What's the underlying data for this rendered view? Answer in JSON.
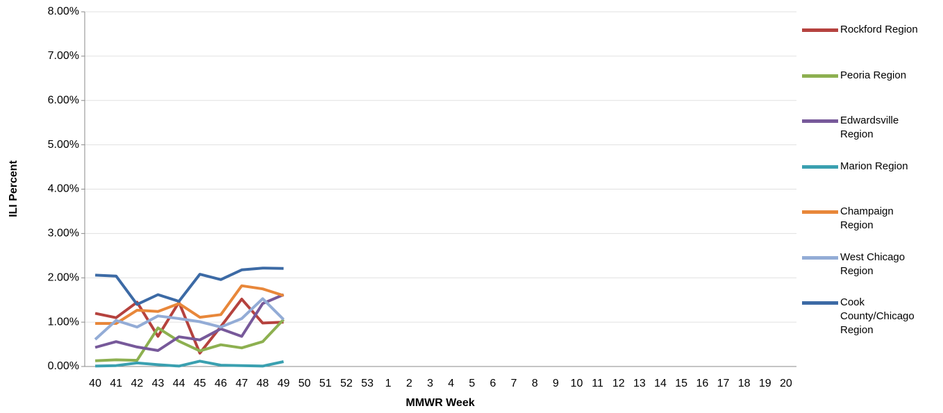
{
  "chart_data": {
    "type": "line",
    "x_label": "MMWR Week",
    "y_label": "ILI Percent",
    "categories": [
      40,
      41,
      42,
      43,
      44,
      45,
      46,
      47,
      48,
      49,
      50,
      51,
      52,
      53,
      1,
      2,
      3,
      4,
      5,
      6,
      7,
      8,
      9,
      10,
      11,
      12,
      13,
      14,
      15,
      16,
      17,
      18,
      19,
      20
    ],
    "ylim": [
      0,
      8
    ],
    "yticks": [
      {
        "value": 0,
        "label": "0.00%"
      },
      {
        "value": 1,
        "label": "1.00%"
      },
      {
        "value": 2,
        "label": "2.00%"
      },
      {
        "value": 3,
        "label": "3.00%"
      },
      {
        "value": 4,
        "label": "4.00%"
      },
      {
        "value": 5,
        "label": "5.00%"
      },
      {
        "value": 6,
        "label": "6.00%"
      },
      {
        "value": 7,
        "label": "7.00%"
      },
      {
        "value": 8,
        "label": "8.00%"
      }
    ],
    "grid": true,
    "legend": "right",
    "series": [
      {
        "name": "Rockford Region",
        "color": "#b5423e",
        "values": [
          1.2,
          1.1,
          1.45,
          0.68,
          1.45,
          0.3,
          0.9,
          1.52,
          0.98,
          1.0,
          null,
          null,
          null,
          null,
          null,
          null,
          null,
          null,
          null,
          null,
          null,
          null,
          null,
          null,
          null,
          null,
          null,
          null,
          null,
          null,
          null,
          null,
          null,
          null
        ]
      },
      {
        "name": "Peoria Region",
        "color": "#8db050",
        "values": [
          0.13,
          0.15,
          0.14,
          0.87,
          0.57,
          0.35,
          0.49,
          0.42,
          0.56,
          1.06,
          null,
          null,
          null,
          null,
          null,
          null,
          null,
          null,
          null,
          null,
          null,
          null,
          null,
          null,
          null,
          null,
          null,
          null,
          null,
          null,
          null,
          null,
          null,
          null
        ]
      },
      {
        "name": "Edwardsville Region",
        "color": "#77599a",
        "values": [
          0.43,
          0.56,
          0.44,
          0.36,
          0.67,
          0.6,
          0.85,
          0.68,
          1.42,
          1.62,
          null,
          null,
          null,
          null,
          null,
          null,
          null,
          null,
          null,
          null,
          null,
          null,
          null,
          null,
          null,
          null,
          null,
          null,
          null,
          null,
          null,
          null,
          null,
          null
        ]
      },
      {
        "name": "Marion Region",
        "color": "#3aa0b0",
        "values": [
          0.01,
          0.02,
          0.08,
          0.04,
          0.01,
          0.12,
          0.03,
          0.02,
          0.01,
          0.11,
          null,
          null,
          null,
          null,
          null,
          null,
          null,
          null,
          null,
          null,
          null,
          null,
          null,
          null,
          null,
          null,
          null,
          null,
          null,
          null,
          null,
          null,
          null,
          null
        ]
      },
      {
        "name": "Champaign Region",
        "color": "#e8873a",
        "values": [
          0.97,
          0.97,
          1.27,
          1.24,
          1.42,
          1.11,
          1.17,
          1.82,
          1.75,
          1.6,
          null,
          null,
          null,
          null,
          null,
          null,
          null,
          null,
          null,
          null,
          null,
          null,
          null,
          null,
          null,
          null,
          null,
          null,
          null,
          null,
          null,
          null,
          null,
          null
        ]
      },
      {
        "name": "West Chicago Region",
        "color": "#93acd6",
        "values": [
          0.61,
          1.04,
          0.89,
          1.14,
          1.08,
          1.01,
          0.89,
          1.08,
          1.53,
          1.06,
          null,
          null,
          null,
          null,
          null,
          null,
          null,
          null,
          null,
          null,
          null,
          null,
          null,
          null,
          null,
          null,
          null,
          null,
          null,
          null,
          null,
          null,
          null,
          null
        ]
      },
      {
        "name": "Cook County/Chicago Region",
        "color": "#3c6aa5",
        "values": [
          2.06,
          2.04,
          1.4,
          1.62,
          1.47,
          2.08,
          1.96,
          2.18,
          2.22,
          2.21,
          null,
          null,
          null,
          null,
          null,
          null,
          null,
          null,
          null,
          null,
          null,
          null,
          null,
          null,
          null,
          null,
          null,
          null,
          null,
          null,
          null,
          null,
          null,
          null
        ]
      }
    ]
  }
}
